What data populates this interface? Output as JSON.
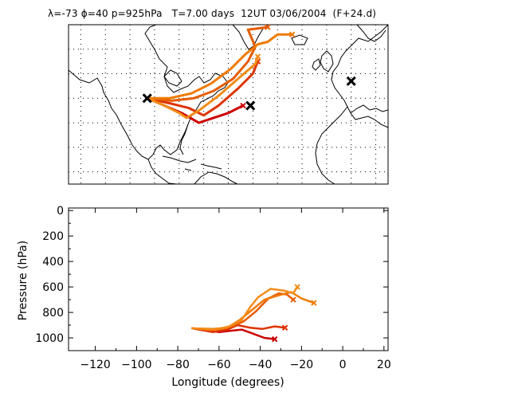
{
  "header": {
    "text": "λ=-73 ϕ=40 p=925hPa   T=7.00 days  12UT 03/06/2004  (F+24.d)"
  },
  "chart_data": [
    {
      "type": "map",
      "title": "λ=-73 ϕ=40 p=925hPa   T=7.00 days  12UT 03/06/2004  (F+24.d)",
      "lon_range": [
        -105,
        25
      ],
      "lat_range": [
        5,
        70
      ],
      "grid": "dotted",
      "markers": [
        {
          "lon": -73,
          "lat": 40,
          "symbol": "x"
        },
        {
          "lon": -31,
          "lat": 37,
          "symbol": "x"
        },
        {
          "lon": 10,
          "lat": 47,
          "symbol": "x"
        }
      ],
      "series": [
        {
          "color": "#cc0000",
          "points": [
            [
              -73,
              40
            ],
            [
              -66,
              37
            ],
            [
              -59,
              34
            ],
            [
              -52,
              30
            ],
            [
              -46,
              32
            ],
            [
              -40,
              34
            ],
            [
              -34,
              37
            ]
          ]
        },
        {
          "color": "#dd3300",
          "points": [
            [
              -73,
              40
            ],
            [
              -64,
              38
            ],
            [
              -56,
              36
            ],
            [
              -50,
              33
            ],
            [
              -44,
              37
            ],
            [
              -36,
              44
            ],
            [
              -30,
              50
            ],
            [
              -28,
              55
            ]
          ]
        },
        {
          "color": "#e65c00",
          "points": [
            [
              -73,
              40
            ],
            [
              -63,
              39
            ],
            [
              -54,
              40
            ],
            [
              -46,
              43
            ],
            [
              -38,
              48
            ],
            [
              -32,
              55
            ],
            [
              -29,
              61
            ],
            [
              -32,
              68
            ],
            [
              -24,
              69
            ]
          ]
        },
        {
          "color": "#ef7a00",
          "points": [
            [
              -73,
              40
            ],
            [
              -64,
              40
            ],
            [
              -55,
              42
            ],
            [
              -47,
              46
            ],
            [
              -39,
              52
            ],
            [
              -33,
              58
            ],
            [
              -28,
              62
            ],
            [
              -24,
              63
            ],
            [
              -20,
              66
            ],
            [
              -14,
              66
            ]
          ]
        },
        {
          "color": "#f38c18",
          "points": [
            [
              -73,
              40
            ],
            [
              -66,
              37
            ],
            [
              -60,
              34
            ],
            [
              -57,
              32
            ],
            [
              -52,
              35
            ],
            [
              -44,
              41
            ],
            [
              -36,
              48
            ],
            [
              -29,
              54
            ],
            [
              -28,
              57
            ]
          ]
        }
      ]
    },
    {
      "type": "line",
      "xlabel": "Longitude  (degrees)",
      "ylabel": "Pressure  (hPa)",
      "xlim": [
        -133,
        22
      ],
      "ylim": [
        1100,
        -20
      ],
      "xticks": [
        -120,
        -100,
        -80,
        -60,
        -40,
        -20,
        0,
        20
      ],
      "yticks": [
        0,
        200,
        400,
        600,
        800,
        1000
      ],
      "series": [
        {
          "color": "#cc0000",
          "points": [
            [
              -73,
              925
            ],
            [
              -66,
              940
            ],
            [
              -60,
              955
            ],
            [
              -55,
              945
            ],
            [
              -49,
              935
            ],
            [
              -43,
              970
            ],
            [
              -38,
              1000
            ],
            [
              -33,
              1010
            ]
          ]
        },
        {
          "color": "#dd3300",
          "points": [
            [
              -73,
              925
            ],
            [
              -63,
              955
            ],
            [
              -56,
              935
            ],
            [
              -51,
              900
            ],
            [
              -45,
              920
            ],
            [
              -39,
              930
            ],
            [
              -33,
              910
            ],
            [
              -28,
              920
            ]
          ]
        },
        {
          "color": "#e65c00",
          "points": [
            [
              -73,
              925
            ],
            [
              -64,
              940
            ],
            [
              -58,
              930
            ],
            [
              -53,
              905
            ],
            [
              -48,
              870
            ],
            [
              -42,
              790
            ],
            [
              -36,
              690
            ],
            [
              -31,
              650
            ],
            [
              -27,
              660
            ],
            [
              -24,
              700
            ]
          ]
        },
        {
          "color": "#ef7a00",
          "points": [
            [
              -73,
              925
            ],
            [
              -63,
              930
            ],
            [
              -56,
              920
            ],
            [
              -50,
              860
            ],
            [
              -44,
              780
            ],
            [
              -38,
              700
            ],
            [
              -31,
              665
            ],
            [
              -25,
              640
            ],
            [
              -20,
              690
            ],
            [
              -14,
              725
            ]
          ]
        },
        {
          "color": "#f38c18",
          "points": [
            [
              -73,
              925
            ],
            [
              -62,
              935
            ],
            [
              -55,
              910
            ],
            [
              -49,
              860
            ],
            [
              -45,
              760
            ],
            [
              -41,
              680
            ],
            [
              -35,
              615
            ],
            [
              -28,
              630
            ],
            [
              -24,
              650
            ],
            [
              -22,
              600
            ]
          ]
        }
      ]
    }
  ]
}
